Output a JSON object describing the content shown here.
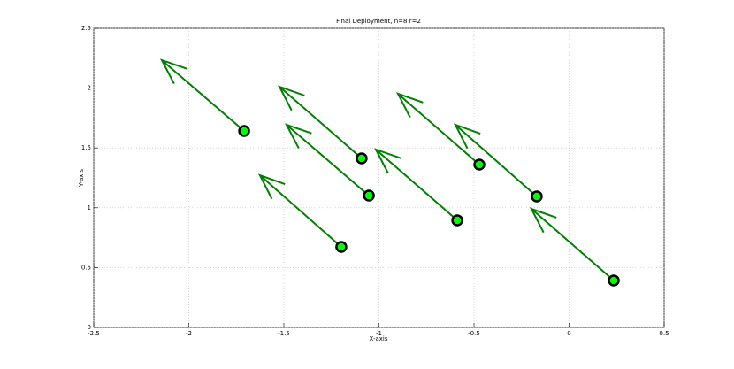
{
  "chart_data": {
    "type": "quiver",
    "title": "Final Deployment, n=8 r=2",
    "xlabel": "X-axis",
    "ylabel": "Y-axis",
    "x": [
      -1.709,
      -1.091,
      -1.053,
      -1.198,
      -0.588,
      -0.472,
      -0.17,
      0.235
    ],
    "y": [
      1.642,
      1.413,
      1.102,
      0.673,
      0.895,
      1.361,
      1.095,
      0.392
    ],
    "u": [
      -0.433,
      -0.432,
      -0.433,
      -0.428,
      -0.428,
      -0.428,
      -0.428,
      -0.433
    ],
    "v": [
      0.592,
      0.599,
      0.592,
      0.599,
      0.592,
      0.592,
      0.599,
      0.599
    ],
    "xlim": [
      -2.5,
      0.5
    ],
    "ylim": [
      0,
      2.5
    ],
    "xticks": [
      -2.5,
      -2,
      -1.5,
      -1,
      -0.5,
      0,
      0.5
    ],
    "yticks": [
      0,
      0.5,
      1,
      1.5,
      2,
      2.5
    ],
    "grid": true,
    "color": "#008000",
    "marker_color": "#00ff00"
  }
}
